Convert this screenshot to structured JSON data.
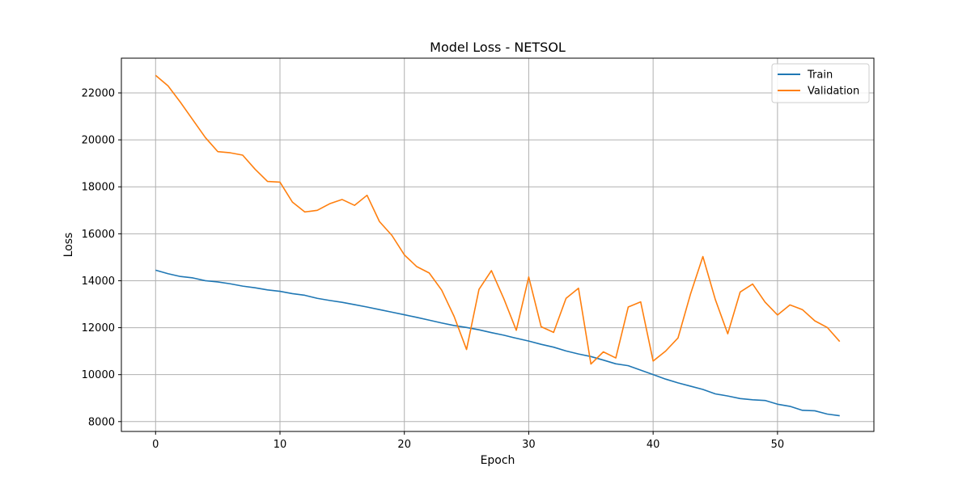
{
  "chart_data": {
    "type": "line",
    "title": "Model Loss - NETSOL",
    "xlabel": "Epoch",
    "ylabel": "Loss",
    "xlim": [
      -2.75,
      57.75
    ],
    "ylim": [
      7580,
      23480
    ],
    "xticks": [
      0,
      10,
      20,
      30,
      40,
      50
    ],
    "yticks": [
      8000,
      10000,
      12000,
      14000,
      16000,
      18000,
      20000,
      22000
    ],
    "grid": true,
    "legend_position": "top-right",
    "colors": {
      "Train": "#1f77b4",
      "Validation": "#ff7f0e"
    },
    "x": [
      0,
      1,
      2,
      3,
      4,
      5,
      6,
      7,
      8,
      9,
      10,
      11,
      12,
      13,
      14,
      15,
      16,
      17,
      18,
      19,
      20,
      21,
      22,
      23,
      24,
      25,
      26,
      27,
      28,
      29,
      30,
      31,
      32,
      33,
      34,
      35,
      36,
      37,
      38,
      39,
      40,
      41,
      42,
      43,
      44,
      45,
      46,
      47,
      48,
      49,
      50,
      51,
      52,
      53,
      54,
      55
    ],
    "series": [
      {
        "name": "Train",
        "values": [
          14450,
          14300,
          14180,
          14120,
          14000,
          13950,
          13870,
          13770,
          13700,
          13610,
          13550,
          13450,
          13380,
          13250,
          13160,
          13080,
          12980,
          12880,
          12770,
          12660,
          12550,
          12440,
          12320,
          12200,
          12090,
          12010,
          11910,
          11790,
          11680,
          11550,
          11430,
          11290,
          11170,
          11010,
          10880,
          10770,
          10620,
          10460,
          10380,
          10190,
          10000,
          9810,
          9650,
          9510,
          9370,
          9180,
          9090,
          8980,
          8930,
          8900,
          8740,
          8650,
          8480,
          8460,
          8320,
          8250
        ]
      },
      {
        "name": "Validation",
        "values": [
          22750,
          22300,
          21600,
          20850,
          20100,
          19500,
          19450,
          19350,
          18750,
          18230,
          18200,
          17350,
          16930,
          17000,
          17280,
          17460,
          17210,
          17640,
          16520,
          15930,
          15100,
          14600,
          14330,
          13600,
          12480,
          11070,
          13630,
          14430,
          13230,
          11890,
          14160,
          12040,
          11800,
          13250,
          13680,
          10450,
          10970,
          10710,
          12880,
          13100,
          10580,
          11000,
          11560,
          13420,
          15030,
          13200,
          11740,
          13520,
          13860,
          13090,
          12540,
          12970,
          12770,
          12290,
          12010,
          11410
        ]
      }
    ]
  }
}
